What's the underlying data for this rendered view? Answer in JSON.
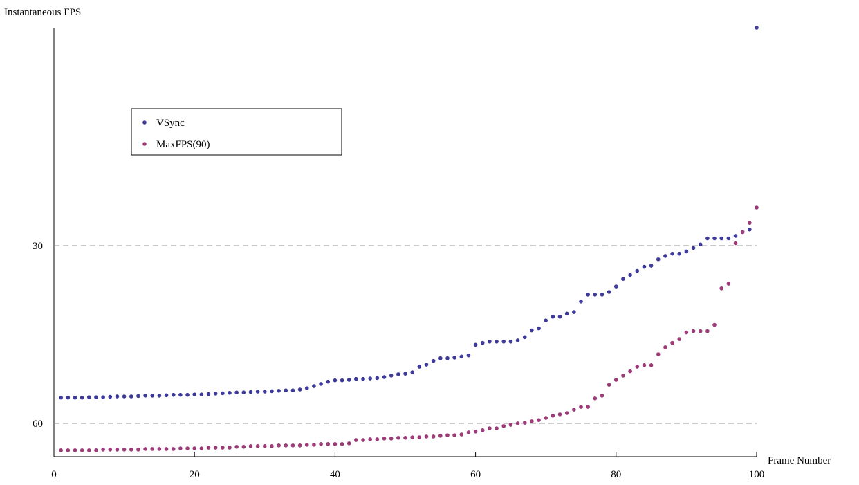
{
  "chart_data": {
    "type": "scatter",
    "y_label": "Instantaneous FPS",
    "x_label": "Frame Number",
    "yscale": "reciprocal",
    "grid": true,
    "grid_style": "dashed",
    "xlim": [
      0,
      100
    ],
    "xticks": [
      0,
      20,
      40,
      60,
      80,
      100
    ],
    "ylim": [
      73.8,
      18.6
    ],
    "yticks": [
      30,
      60
    ],
    "x": [
      1,
      2,
      3,
      4,
      5,
      6,
      7,
      8,
      9,
      10,
      11,
      12,
      13,
      14,
      15,
      16,
      17,
      18,
      19,
      20,
      21,
      22,
      23,
      24,
      25,
      26,
      27,
      28,
      29,
      30,
      31,
      32,
      33,
      34,
      35,
      36,
      37,
      38,
      39,
      40,
      41,
      42,
      43,
      44,
      45,
      46,
      47,
      48,
      49,
      50,
      51,
      52,
      53,
      54,
      55,
      56,
      57,
      58,
      59,
      60,
      61,
      62,
      63,
      64,
      65,
      66,
      67,
      68,
      69,
      70,
      71,
      72,
      73,
      74,
      75,
      76,
      77,
      78,
      79,
      80,
      81,
      82,
      83,
      84,
      85,
      86,
      87,
      88,
      89,
      90,
      91,
      92,
      93,
      94,
      95,
      96,
      97,
      98,
      99,
      100
    ],
    "series": [
      {
        "name": "VSync",
        "color": "#3d3a9a",
        "values": [
          52.4,
          52.4,
          52.4,
          52.4,
          52.3,
          52.3,
          52.3,
          52.2,
          52.1,
          52.1,
          52.1,
          52.0,
          51.9,
          51.9,
          51.9,
          51.8,
          51.7,
          51.7,
          51.7,
          51.6,
          51.6,
          51.5,
          51.4,
          51.3,
          51.2,
          51.1,
          51.1,
          51.0,
          50.9,
          50.9,
          50.8,
          50.7,
          50.6,
          50.6,
          50.4,
          50.1,
          49.6,
          49.1,
          48.6,
          48.3,
          48.3,
          48.2,
          48.0,
          48.0,
          47.9,
          47.8,
          47.6,
          47.3,
          47.0,
          46.9,
          46.6,
          45.5,
          45.1,
          44.4,
          43.9,
          43.9,
          43.8,
          43.6,
          43.4,
          41.6,
          41.3,
          41.1,
          41.1,
          41.1,
          41.1,
          40.9,
          40.4,
          39.4,
          39.1,
          38.0,
          37.5,
          37.5,
          37.1,
          36.9,
          35.6,
          34.8,
          34.8,
          34.8,
          34.5,
          33.9,
          33.1,
          32.7,
          32.3,
          31.9,
          31.8,
          31.2,
          30.9,
          30.7,
          30.7,
          30.5,
          30.2,
          29.9,
          29.4,
          29.4,
          29.4,
          29.4,
          29.2,
          28.9,
          28.7,
          18.6
        ]
      },
      {
        "name": "MaxFPS(90)",
        "color": "#9c3b78",
        "values": [
          70.7,
          70.7,
          70.7,
          70.7,
          70.7,
          70.7,
          70.4,
          70.4,
          70.4,
          70.4,
          70.4,
          70.4,
          70.1,
          70.1,
          70.1,
          70.1,
          70.1,
          69.8,
          69.8,
          69.8,
          69.8,
          69.5,
          69.5,
          69.5,
          69.5,
          69.1,
          69.1,
          68.8,
          68.8,
          68.8,
          68.8,
          68.5,
          68.5,
          68.5,
          68.5,
          68.2,
          68.2,
          67.9,
          67.9,
          67.9,
          67.9,
          67.6,
          66.2,
          66.2,
          65.9,
          65.9,
          65.6,
          65.6,
          65.3,
          65.3,
          65.1,
          65.1,
          64.8,
          64.8,
          64.5,
          64.3,
          64.3,
          64.0,
          63.2,
          62.9,
          62.4,
          61.7,
          61.7,
          60.9,
          60.5,
          60.0,
          59.8,
          59.3,
          58.9,
          58.2,
          57.5,
          57.1,
          56.7,
          55.7,
          54.9,
          54.9,
          52.6,
          51.9,
          49.3,
          48.2,
          47.3,
          46.4,
          45.5,
          45.2,
          45.2,
          43.2,
          42.0,
          41.3,
          40.7,
          39.7,
          39.5,
          39.5,
          39.5,
          38.6,
          34.1,
          33.6,
          29.8,
          28.9,
          28.2,
          27.1
        ]
      }
    ]
  }
}
